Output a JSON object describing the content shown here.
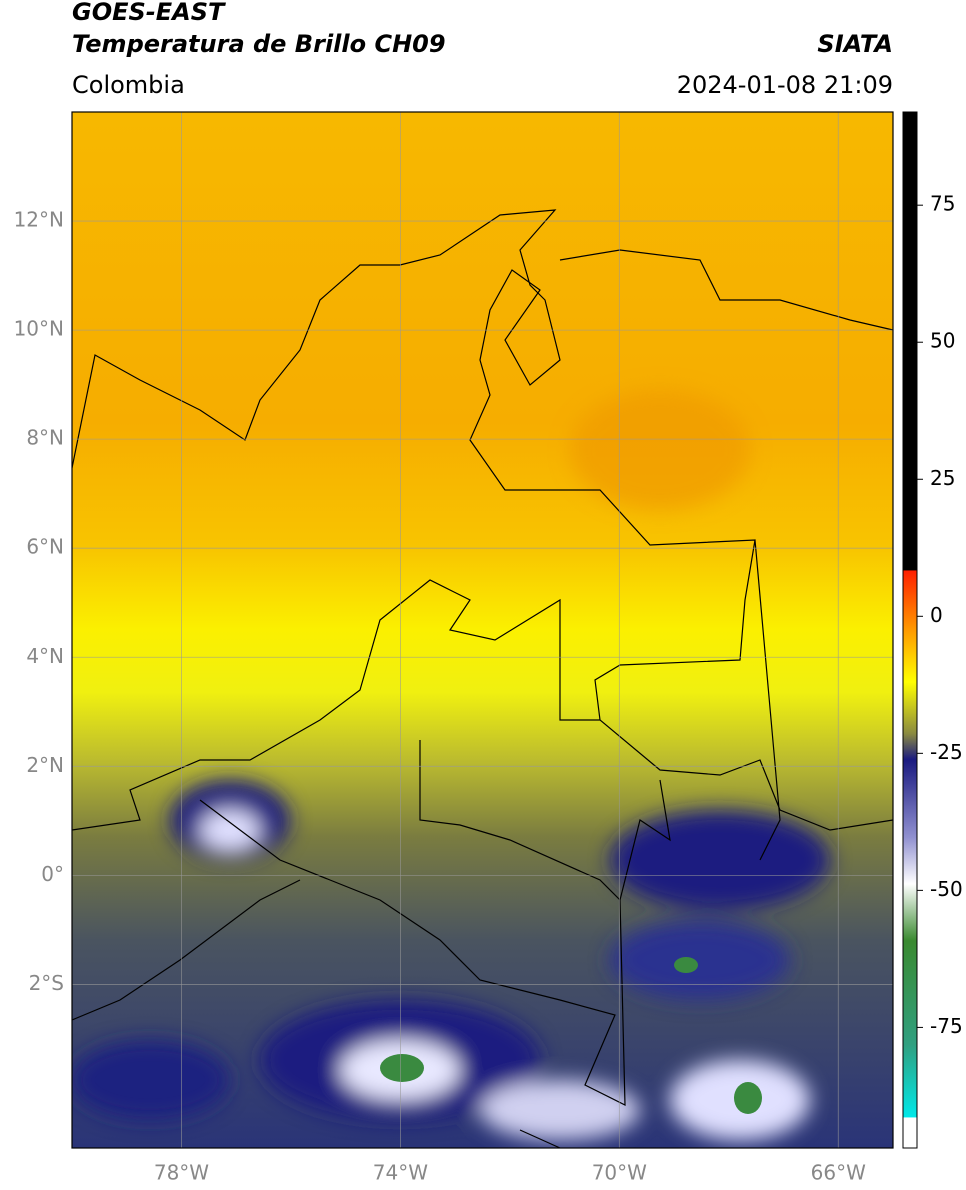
{
  "header": {
    "title": "GOES-EAST",
    "subtitle": "Temperatura de Brillo CH09",
    "source": "SIATA",
    "region": "Colombia",
    "datetime": "2024-01-08 21:09"
  },
  "map": {
    "lon_lim": [
      -80,
      -65
    ],
    "lat_lim": [
      -5,
      14
    ],
    "lat_ticks": [
      {
        "value": 12,
        "label": "12°N"
      },
      {
        "value": 10,
        "label": "10°N"
      },
      {
        "value": 8,
        "label": "8°N"
      },
      {
        "value": 6,
        "label": "6°N"
      },
      {
        "value": 4,
        "label": "4°N"
      },
      {
        "value": 2,
        "label": "2°N"
      },
      {
        "value": 0,
        "label": "0°"
      },
      {
        "value": -2,
        "label": "2°S"
      }
    ],
    "lon_ticks": [
      {
        "value": -78,
        "label": "78°W"
      },
      {
        "value": -74,
        "label": "74°W"
      },
      {
        "value": -70,
        "label": "70°W"
      },
      {
        "value": -66,
        "label": "66°W"
      }
    ]
  },
  "colorbar": {
    "lim": [
      -97,
      92
    ],
    "ticks": [
      75,
      50,
      25,
      0,
      -25,
      -50,
      -75
    ]
  }
}
